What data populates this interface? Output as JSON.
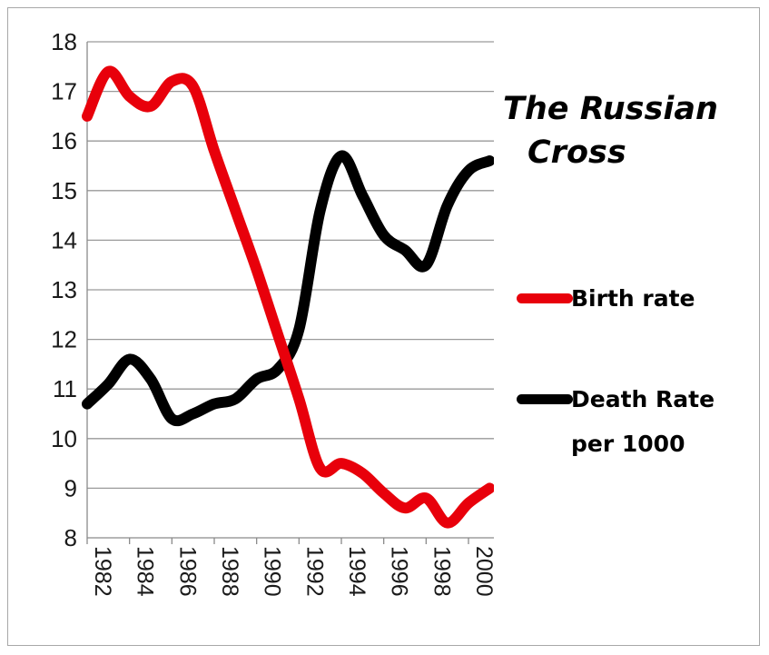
{
  "chart_data": {
    "type": "line",
    "title_line1": "The Russian",
    "title_line2": "Cross",
    "xlabel": "",
    "ylabel": "",
    "xlim": [
      1982,
      2001.2
    ],
    "ylim": [
      8,
      18
    ],
    "yticks": [
      8,
      9,
      10,
      11,
      12,
      13,
      14,
      15,
      16,
      17,
      18
    ],
    "xticks": [
      "1982",
      "1984",
      "1986",
      "1988",
      "1990",
      "1992",
      "1994",
      "1996",
      "1998",
      "2000"
    ],
    "grid": "horizontal",
    "legend_position": "right",
    "series": [
      {
        "name": "Birth rate",
        "color": "#e8000b",
        "x": [
          1982,
          1983,
          1984,
          1985,
          1986,
          1987,
          1988,
          1989,
          1990,
          1991,
          1992,
          1993,
          1994,
          1995,
          1996,
          1997,
          1998,
          1999,
          2000,
          2001
        ],
        "y": [
          16.5,
          17.4,
          16.9,
          16.7,
          17.2,
          17.1,
          15.8,
          14.6,
          13.4,
          12.1,
          10.8,
          9.4,
          9.5,
          9.3,
          8.9,
          8.6,
          8.8,
          8.3,
          8.7,
          9.0
        ]
      },
      {
        "name_line1": "Death Rate",
        "name_line2": "per 1000",
        "color": "#000000",
        "x": [
          1982,
          1983,
          1984,
          1985,
          1986,
          1987,
          1988,
          1989,
          1990,
          1991,
          1992,
          1993,
          1994,
          1995,
          1996,
          1997,
          1998,
          1999,
          2000,
          2001
        ],
        "y": [
          10.7,
          11.1,
          11.6,
          11.2,
          10.4,
          10.5,
          10.7,
          10.8,
          11.2,
          11.4,
          12.2,
          14.6,
          15.7,
          14.9,
          14.1,
          13.8,
          13.5,
          14.7,
          15.4,
          15.6
        ]
      }
    ]
  }
}
